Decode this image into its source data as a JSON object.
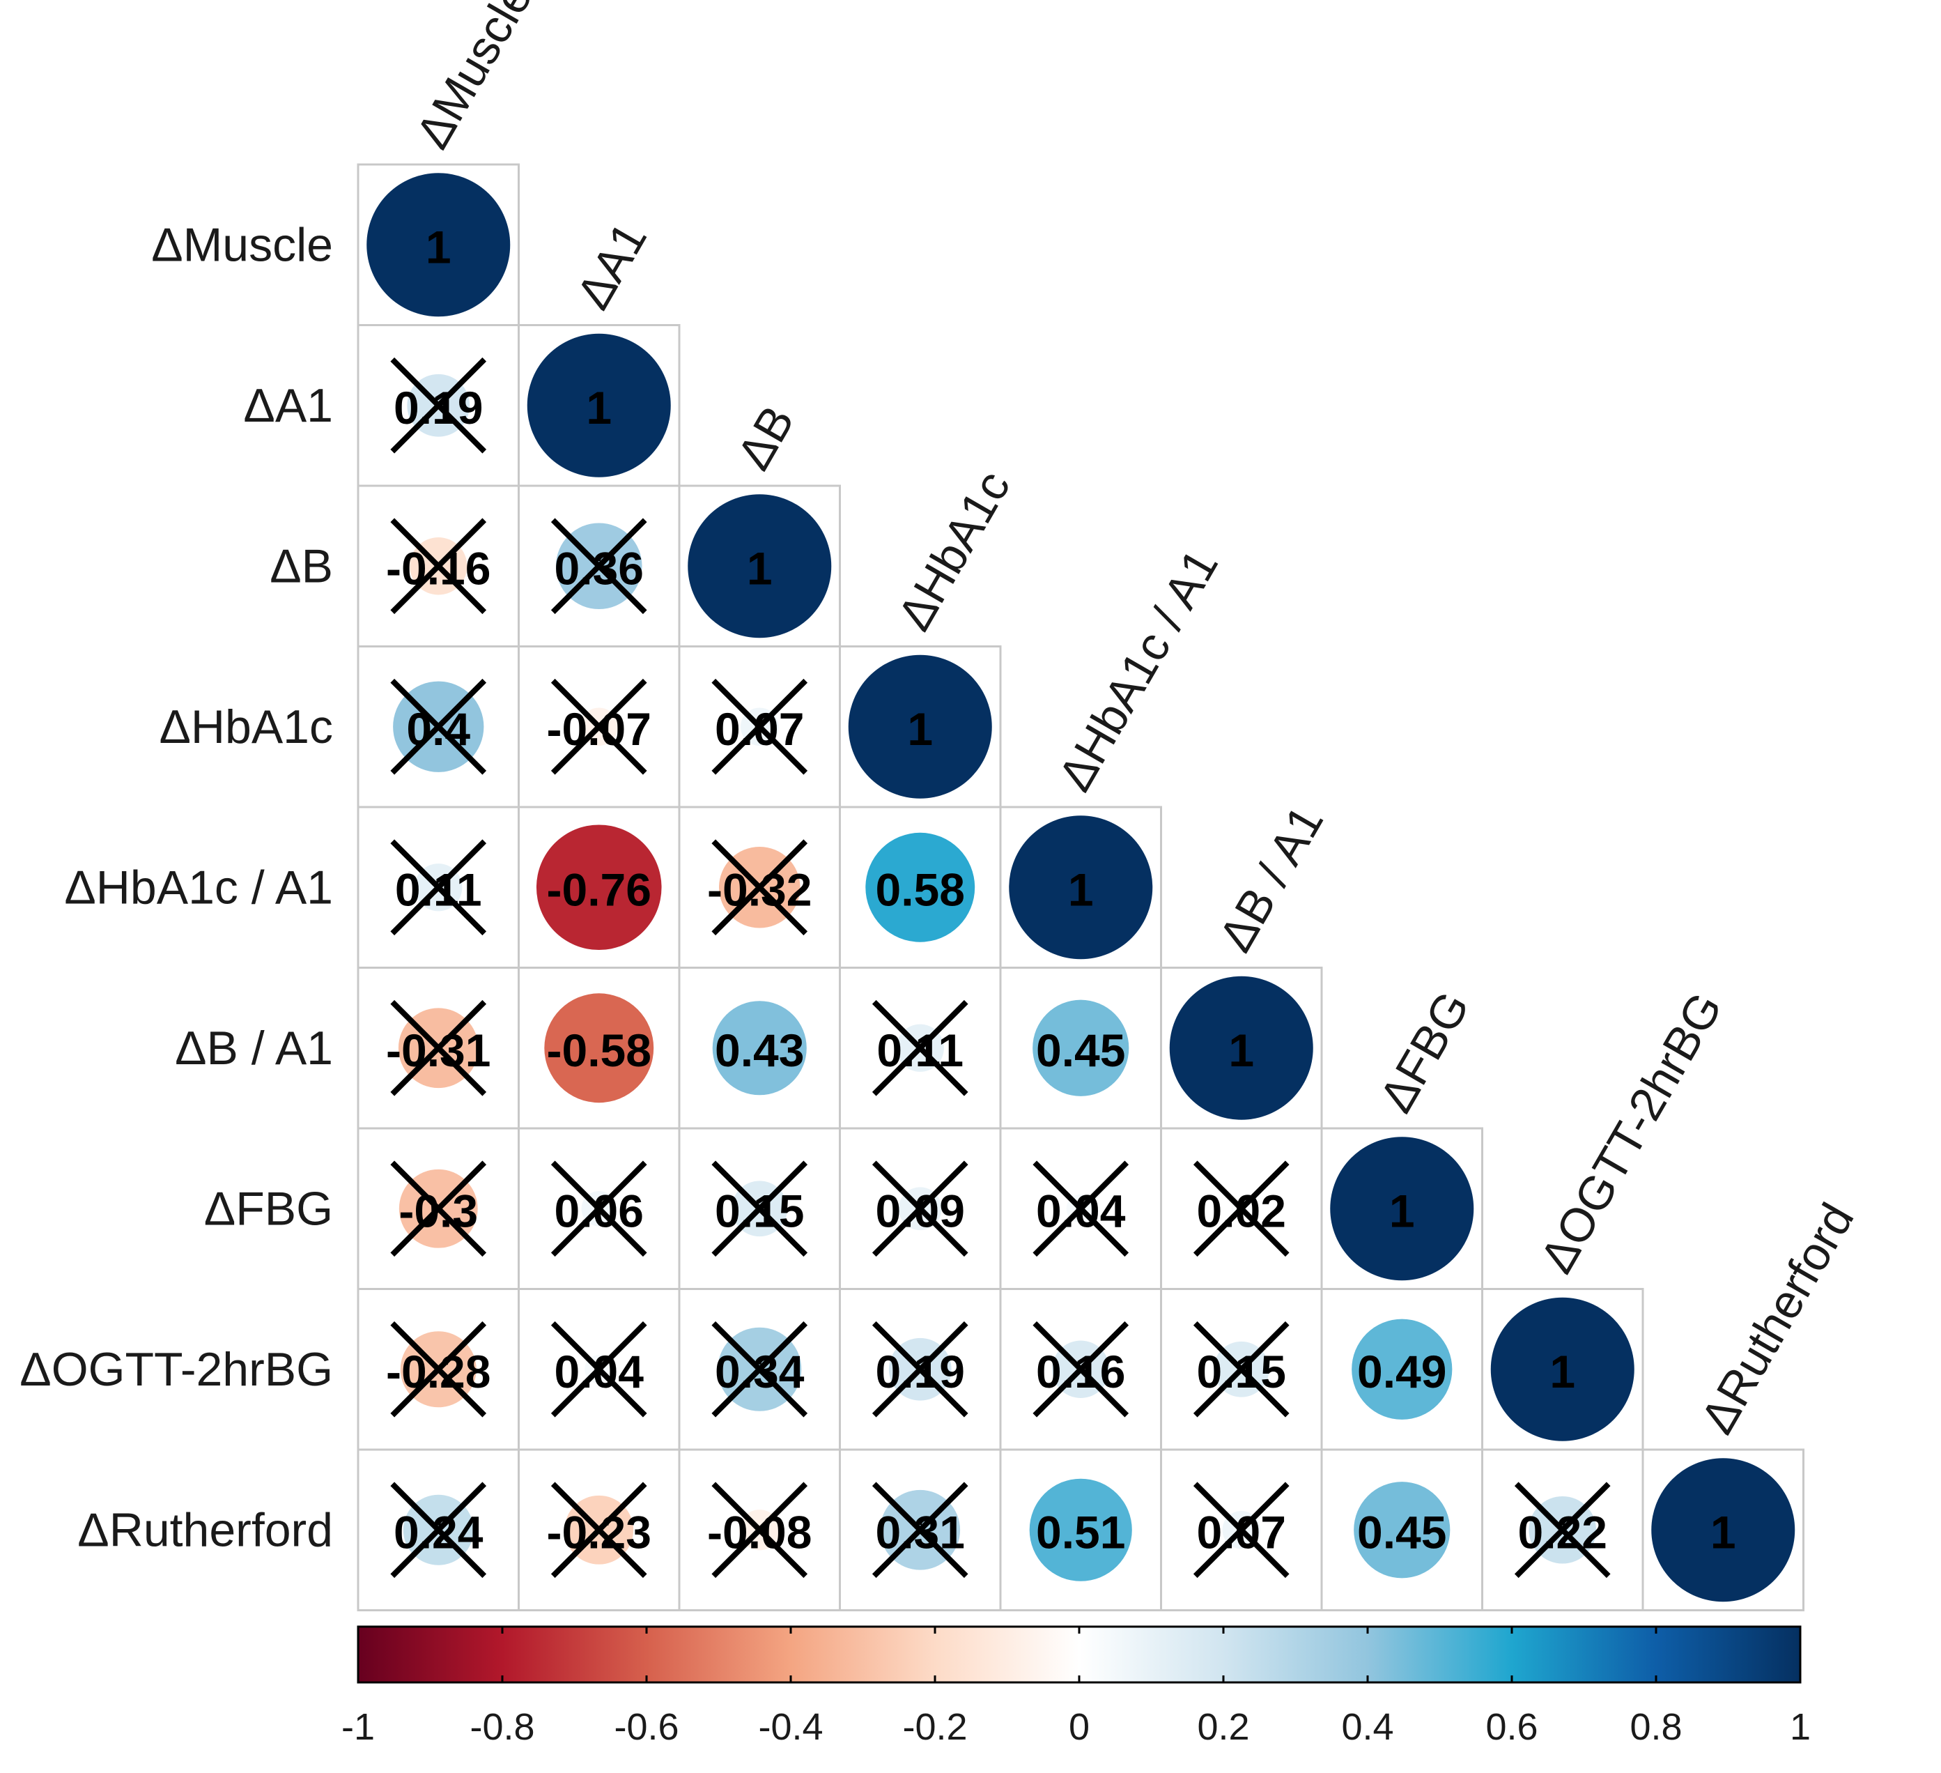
{
  "chart_data": {
    "type": "heatmap",
    "subtype": "correlation-circle-lower-triangle",
    "variables": [
      "ΔMuscle",
      "ΔA1",
      "ΔB",
      "ΔHbA1c",
      "ΔHbA1c / A1",
      "ΔB / A1",
      "ΔFBG",
      "ΔOGTT-2hrBG",
      "ΔRutherford"
    ],
    "matrix": [
      [
        1
      ],
      [
        0.19,
        1
      ],
      [
        -0.16,
        0.36,
        1
      ],
      [
        0.4,
        -0.07,
        0.07,
        1
      ],
      [
        0.11,
        -0.76,
        -0.32,
        0.58,
        1
      ],
      [
        -0.31,
        -0.58,
        0.43,
        0.11,
        0.45,
        1
      ],
      [
        -0.3,
        0.06,
        0.15,
        0.09,
        0.04,
        0.02,
        1
      ],
      [
        -0.28,
        0.04,
        0.34,
        0.19,
        0.16,
        0.15,
        0.49,
        1
      ],
      [
        0.24,
        -0.23,
        -0.08,
        0.31,
        0.51,
        0.07,
        0.45,
        0.22,
        1
      ]
    ],
    "value_labels": [
      [
        "1"
      ],
      [
        "0.19",
        "1"
      ],
      [
        "-0.16",
        "0.36",
        "1"
      ],
      [
        "0.4",
        "-0.07",
        "0.07",
        "1"
      ],
      [
        "0.11",
        "-0.76",
        "-0.32",
        "0.58",
        "1"
      ],
      [
        "-0.31",
        "-0.58",
        "0.43",
        "0.11",
        "0.45",
        "1"
      ],
      [
        "-0.3",
        "0.06",
        "0.15",
        "0.09",
        "0.04",
        "0.02",
        "1"
      ],
      [
        "-0.28",
        "0.04",
        "0.34",
        "0.19",
        "0.16",
        "0.15",
        "0.49",
        "1"
      ],
      [
        "0.24",
        "-0.23",
        "-0.08",
        "0.31",
        "0.51",
        "0.07",
        "0.45",
        "0.22",
        "1"
      ]
    ],
    "insignificant": [
      [
        false
      ],
      [
        true,
        false
      ],
      [
        true,
        true,
        false
      ],
      [
        true,
        true,
        true,
        false
      ],
      [
        true,
        false,
        true,
        false,
        false
      ],
      [
        true,
        false,
        false,
        true,
        false,
        false
      ],
      [
        true,
        true,
        true,
        true,
        true,
        true,
        false
      ],
      [
        true,
        true,
        true,
        true,
        true,
        true,
        false,
        false
      ],
      [
        true,
        true,
        true,
        true,
        false,
        true,
        false,
        true,
        false
      ]
    ],
    "colorbar": {
      "range": [
        -1,
        1
      ],
      "ticks": [
        "-1",
        "-0.8",
        "-0.6",
        "-0.4",
        "-0.2",
        "0",
        "0.2",
        "0.4",
        "0.6",
        "0.8",
        "1"
      ],
      "tick_values": [
        -1,
        -0.8,
        -0.6,
        -0.4,
        -0.2,
        0,
        0.2,
        0.4,
        0.6,
        0.8,
        1
      ],
      "placement": "bottom"
    },
    "colors": [
      "#67001F",
      "#B2182B",
      "#D6604D",
      "#F4A582",
      "#FDDBC7",
      "#FFFFFF",
      "#D1E5F0",
      "#92C5DE",
      "#4393C3",
      "#2166AC",
      "#053061"
    ],
    "palette_stops": [
      {
        "v": -1,
        "c": "#67001F"
      },
      {
        "v": -0.8,
        "c": "#B2182B"
      },
      {
        "v": -0.6,
        "c": "#D6604D"
      },
      {
        "v": -0.4,
        "c": "#F4A582"
      },
      {
        "v": -0.2,
        "c": "#FDDBC7"
      },
      {
        "v": 0,
        "c": "#FFFFFF"
      },
      {
        "v": 0.2,
        "c": "#D1E5F0"
      },
      {
        "v": 0.4,
        "c": "#92C5DE"
      },
      {
        "v": 0.6,
        "c": "#1FA6CF"
      },
      {
        "v": 0.8,
        "c": "#0E5EA8"
      },
      {
        "v": 1,
        "c": "#053061"
      }
    ]
  }
}
